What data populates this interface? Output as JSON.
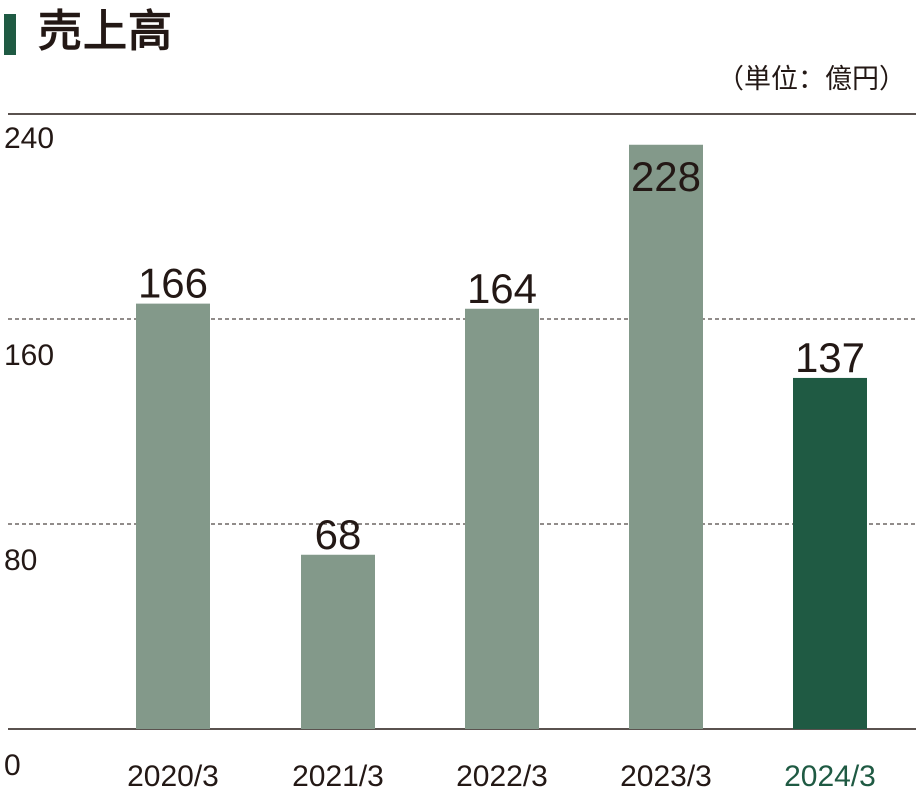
{
  "header": {
    "title": "売上高",
    "unit": "（単位：億円）",
    "marker_color": "#1f5a43"
  },
  "chart_data": {
    "type": "bar",
    "title": "売上高",
    "unit": "（単位：億円）",
    "categories": [
      "2020/3",
      "2021/3",
      "2022/3",
      "2023/3",
      "2024/3"
    ],
    "values": [
      166,
      68,
      164,
      228,
      137
    ],
    "data_labels": [
      "166",
      "68",
      "164",
      "228",
      "137"
    ],
    "ylim": [
      0,
      240
    ],
    "y_ticks": [
      0,
      80,
      160,
      240
    ],
    "y_tick_labels": [
      "0",
      "80",
      "160",
      "240"
    ],
    "grid": "dashed horizontal at 80 and 160",
    "colors": {
      "bar": "#83998a",
      "highlight_bar": "#1f5a43",
      "highlight_label": "#1f5a43",
      "label": "#231815",
      "axis": "#231815"
    },
    "highlight_index": 4
  }
}
